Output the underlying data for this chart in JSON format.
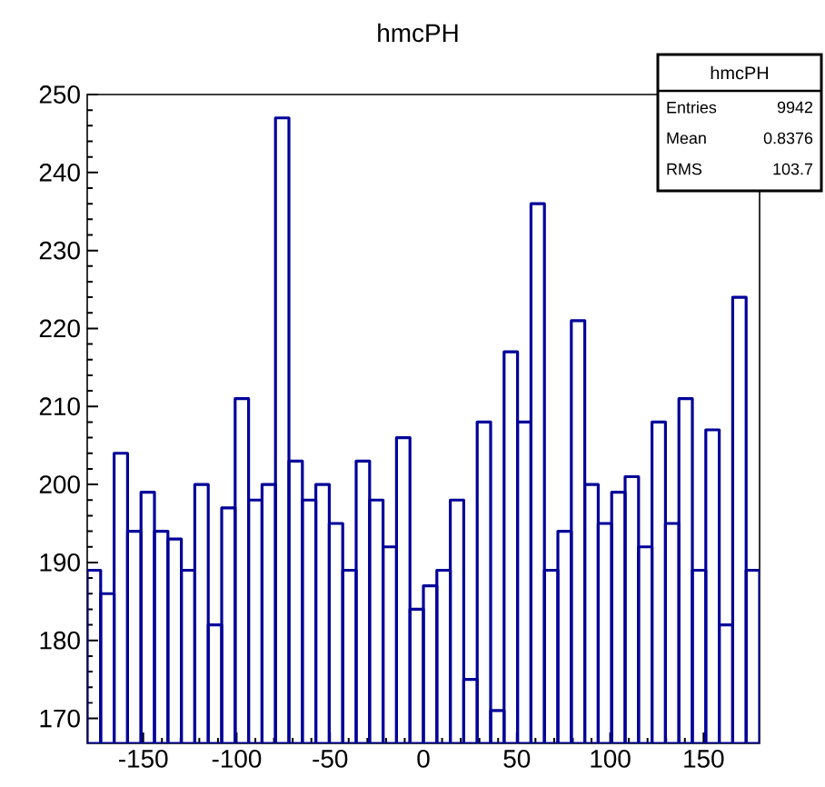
{
  "chart_data": {
    "type": "histogram",
    "title": "hmcPH",
    "bins": [
      -180,
      -172.8,
      -165.6,
      -158.4,
      -151.2,
      -144,
      -136.8,
      -129.6,
      -122.4,
      -115.2,
      -108,
      -100.8,
      -93.6,
      -86.4,
      -79.2,
      -72,
      -64.8,
      -57.6,
      -50.4,
      -43.2,
      -36,
      -28.8,
      -21.6,
      -14.4,
      -7.2,
      0,
      7.2,
      14.4,
      21.6,
      28.8,
      36,
      43.2,
      50.4,
      57.6,
      64.8,
      72,
      79.2,
      86.4,
      93.6,
      100.8,
      108,
      115.2,
      122.4,
      129.6,
      136.8,
      144,
      151.2,
      158.4,
      165.6,
      172.8,
      180
    ],
    "values": [
      189,
      186,
      204,
      194,
      199,
      194,
      193,
      189,
      200,
      182,
      197,
      211,
      198,
      200,
      247,
      203,
      198,
      200,
      195,
      189,
      203,
      198,
      192,
      206,
      184,
      187,
      189,
      198,
      175,
      208,
      171,
      217,
      208,
      236,
      189,
      194,
      221,
      200,
      195,
      199,
      201,
      192,
      208,
      195,
      211,
      189,
      207,
      182,
      224,
      189
    ],
    "color": "#000099",
    "xlim": [
      -180,
      180
    ],
    "ylim": [
      166.8,
      250
    ],
    "xticks": [
      -150,
      -100,
      -50,
      0,
      50,
      100,
      150
    ],
    "yticks": [
      170,
      180,
      190,
      200,
      210,
      220,
      230,
      240,
      250
    ],
    "annotations": [
      "hmcPH",
      "Entries",
      "9942",
      "Mean",
      "0.8376",
      "RMS",
      "103.7"
    ]
  }
}
